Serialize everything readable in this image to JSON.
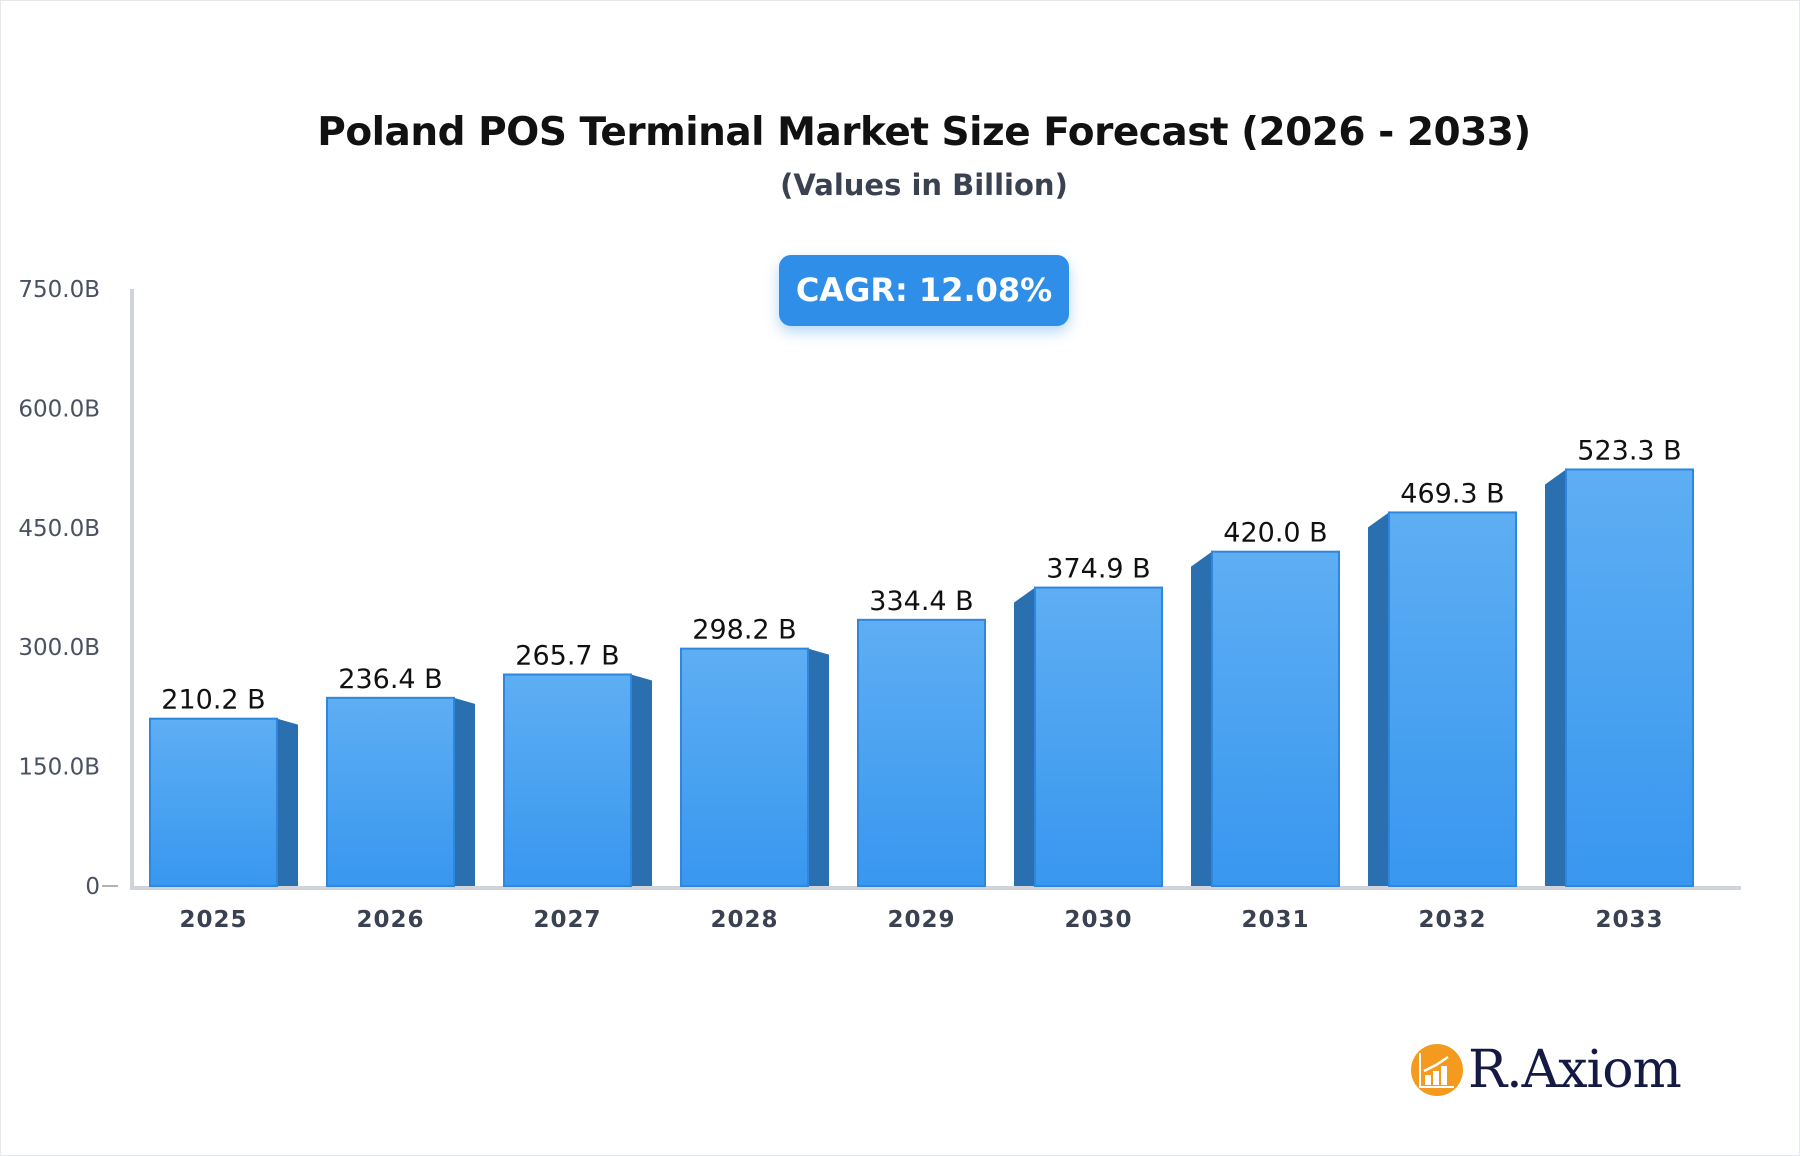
{
  "chart_data": {
    "type": "bar",
    "title": "Poland POS Terminal Market Size Forecast (2026 - 2033)",
    "subtitle": "(Values in Billion)",
    "categories": [
      "2025",
      "2026",
      "2027",
      "2028",
      "2029",
      "2030",
      "2031",
      "2032",
      "2033"
    ],
    "values": [
      210.2,
      236.4,
      265.7,
      298.2,
      334.4,
      374.9,
      420.0,
      469.3,
      523.3
    ],
    "data_labels": [
      "210.2 B",
      "236.4 B",
      "265.7 B",
      "298.2 B",
      "334.4 B",
      "374.9 B",
      "420.0 B",
      "469.3 B",
      "523.3 B"
    ],
    "ylim": [
      0,
      750
    ],
    "yticks": [
      0,
      150,
      300,
      450,
      600,
      750
    ],
    "ytick_labels": [
      "0",
      "150.0B",
      "300.0B",
      "450.0B",
      "600.0B",
      "750.0B"
    ],
    "xlabel": "",
    "ylabel": "",
    "grid": false,
    "bar_color": "#3a9af0",
    "bar_side_color": "#2a6fb0",
    "annotation": "CAGR: 12.08%"
  },
  "brand": {
    "name": "R.Axiom",
    "icon": "bar-chart-growth-icon",
    "color": "#f39a1f"
  }
}
